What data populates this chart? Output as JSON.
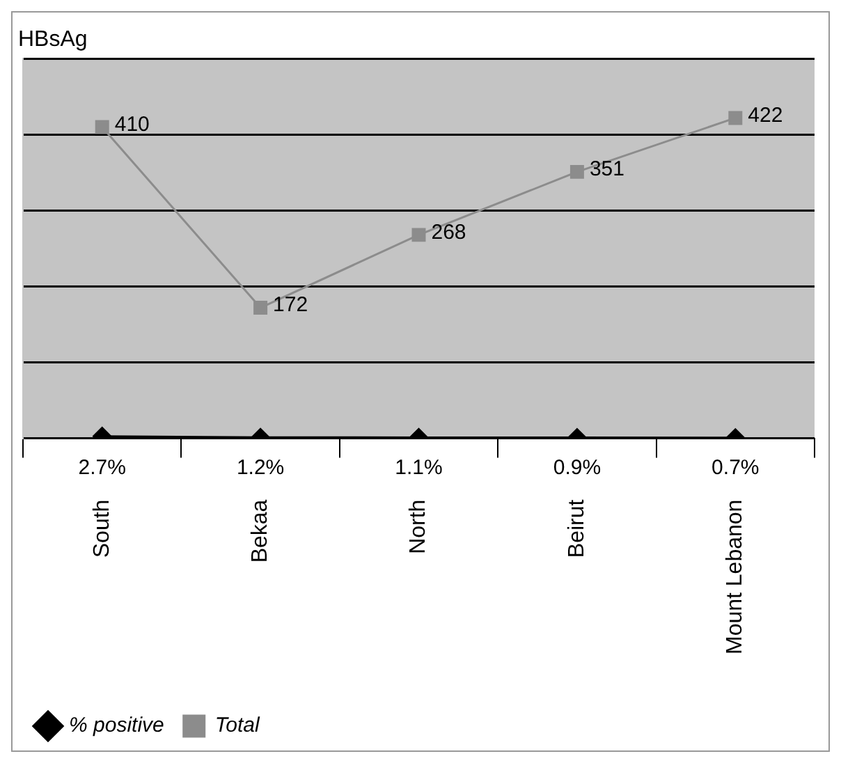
{
  "chart_data": {
    "type": "line",
    "title": "HBsAg",
    "categories": [
      "South",
      "Bekaa",
      "North",
      "Beirut",
      "Mount Lebanon"
    ],
    "series": [
      {
        "name": "% positive",
        "color": "#000000",
        "marker": "diamond",
        "values": [
          2.7,
          1.2,
          1.1,
          0.9,
          0.7
        ],
        "value_labels": [
          "2.7%",
          "1.2%",
          "1.1%",
          "0.9%",
          "0.7%"
        ]
      },
      {
        "name": "Total",
        "color": "#8c8c8c",
        "marker": "square",
        "values": [
          410,
          172,
          268,
          351,
          422
        ],
        "value_labels": [
          "410",
          "172",
          "268",
          "351",
          "422"
        ]
      }
    ],
    "ylim": [
      0,
      500
    ],
    "yticks": [
      {
        "value": 0,
        "label": null
      },
      {
        "value": 100,
        "label": null
      },
      {
        "value": 200,
        "label": null
      },
      {
        "value": 300,
        "label": null
      },
      {
        "value": 400,
        "label": null
      },
      {
        "value": 500,
        "label": null
      }
    ],
    "grid": "y",
    "legend": "bottom left",
    "tick_labels": "x",
    "line_style": "solid"
  }
}
